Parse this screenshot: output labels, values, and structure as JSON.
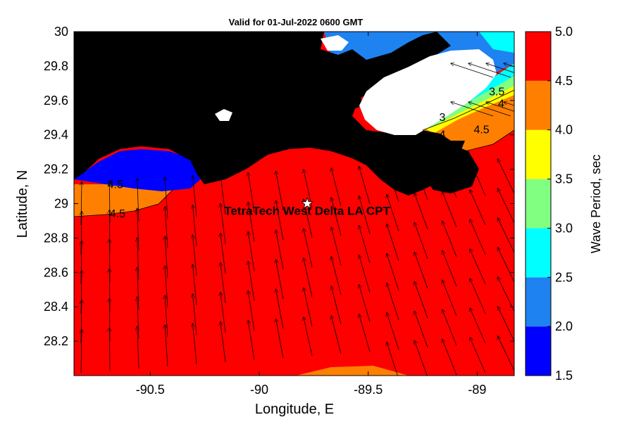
{
  "title": "Valid for 01-Jul-2022 0600 GMT",
  "map": {
    "xlabel": "Longitude, E",
    "ylabel": "Latitude, N",
    "lon_range": [
      -90.85,
      -88.83
    ],
    "lat_range": [
      28.0,
      30.0
    ],
    "x_ticks": [
      {
        "value": -90.5,
        "label": "-90.5"
      },
      {
        "value": -90.0,
        "label": "-90"
      },
      {
        "value": -89.5,
        "label": "-89.5"
      },
      {
        "value": -89.0,
        "label": "-89"
      }
    ],
    "y_ticks": [
      {
        "value": 30.0,
        "label": "30"
      },
      {
        "value": 29.8,
        "label": "29.8"
      },
      {
        "value": 29.6,
        "label": "29.6"
      },
      {
        "value": 29.4,
        "label": "29.4"
      },
      {
        "value": 29.2,
        "label": "29.2"
      },
      {
        "value": 29.0,
        "label": "29"
      },
      {
        "value": 28.8,
        "label": "28.8"
      },
      {
        "value": 28.6,
        "label": "28.6"
      },
      {
        "value": 28.4,
        "label": "28.4"
      },
      {
        "value": 28.2,
        "label": "28.2"
      }
    ],
    "station": {
      "name": "TetraTech West Delta LA CPT",
      "lon": -89.78,
      "lat": 29.0
    },
    "contour_labels": [
      {
        "text": "4.5",
        "lon": -90.66,
        "lat": 29.09
      },
      {
        "text": "4.5",
        "lon": -90.65,
        "lat": 28.92
      },
      {
        "text": "3",
        "lon": -89.16,
        "lat": 29.48
      },
      {
        "text": "4",
        "lon": -89.16,
        "lat": 29.38
      },
      {
        "text": "4.5",
        "lon": -88.98,
        "lat": 29.41
      },
      {
        "text": "3.5",
        "lon": -88.91,
        "lat": 29.63
      },
      {
        "text": "4",
        "lon": -88.89,
        "lat": 29.56
      }
    ]
  },
  "colorbar": {
    "label": "Wave Period, sec",
    "ticks": [
      "5.0",
      "4.5",
      "4.0",
      "3.5",
      "3.0",
      "2.5",
      "2.0",
      "1.5"
    ],
    "bins": [
      {
        "from": 1.5,
        "to": 2.0,
        "color": "#0000ff"
      },
      {
        "from": 2.0,
        "to": 2.5,
        "color": "#1e82f0"
      },
      {
        "from": 2.5,
        "to": 3.0,
        "color": "#00ffff"
      },
      {
        "from": 3.0,
        "to": 3.5,
        "color": "#80ff80"
      },
      {
        "from": 3.5,
        "to": 4.0,
        "color": "#ffff00"
      },
      {
        "from": 4.0,
        "to": 4.5,
        "color": "#ff8000"
      },
      {
        "from": 4.5,
        "to": 5.0,
        "color": "#ff0000"
      }
    ]
  },
  "colors": {
    "sea_dominant": "#ff0000",
    "land": "#000000",
    "missing": "#ffffff"
  }
}
